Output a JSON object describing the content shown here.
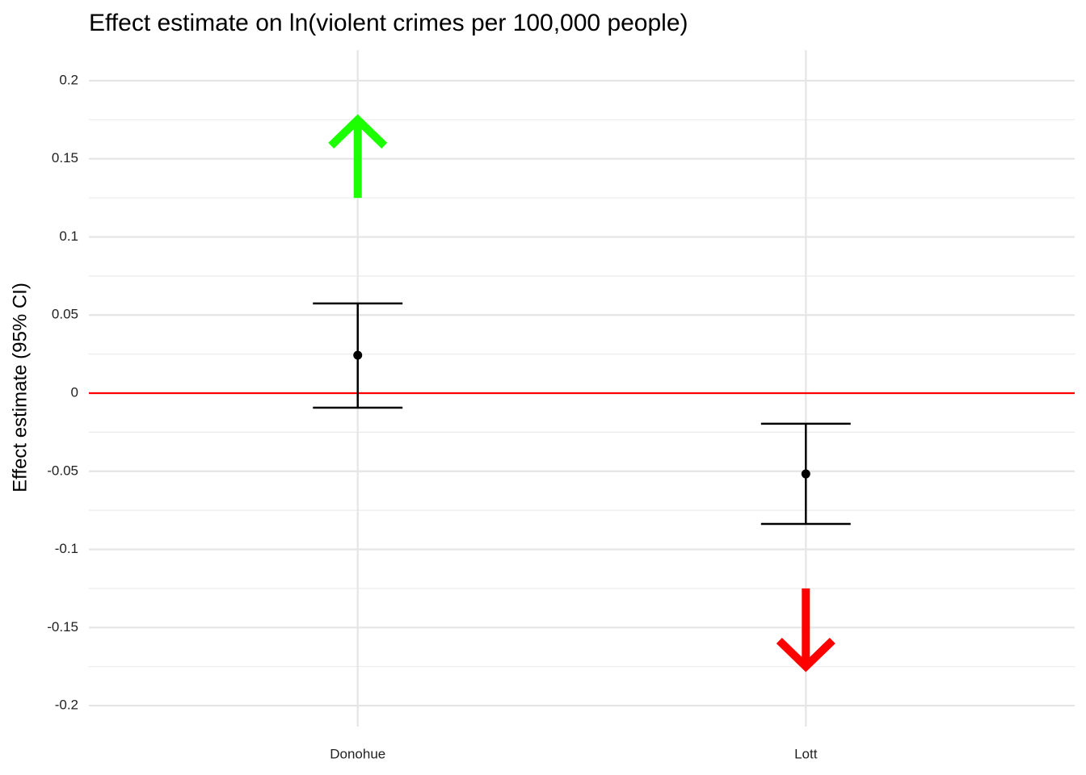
{
  "chart_data": {
    "type": "errorbar",
    "title": "Effect estimate on ln(violent crimes per 100,000 people)",
    "y_label": "Effect estimate (95% CI)",
    "categories": [
      "Donohue",
      "Lott"
    ],
    "series": [
      {
        "color": "#000000",
        "values": [
          0.0243,
          -0.0517
        ],
        "lower": [
          -0.0093,
          -0.0837
        ],
        "upper": [
          0.0574,
          -0.0196
        ]
      }
    ],
    "ylim": [
      -0.2134,
      0.2196
    ],
    "yticks": [
      -0.2,
      -0.15,
      -0.1,
      -0.05,
      0,
      0.05,
      0.1,
      0.15,
      0.2
    ],
    "yminor": [
      -0.175,
      -0.125,
      -0.075,
      -0.025,
      0.025,
      0.075,
      0.125,
      0.175
    ],
    "grid": true,
    "reference_line": {
      "value": 0,
      "color": "#ff0000"
    },
    "arrows": [
      {
        "category": 0,
        "from": 0.125,
        "to": 0.177,
        "color": "#1cff00"
      },
      {
        "category": 1,
        "from": -0.125,
        "to": -0.177,
        "color": "#ff0000"
      }
    ]
  }
}
